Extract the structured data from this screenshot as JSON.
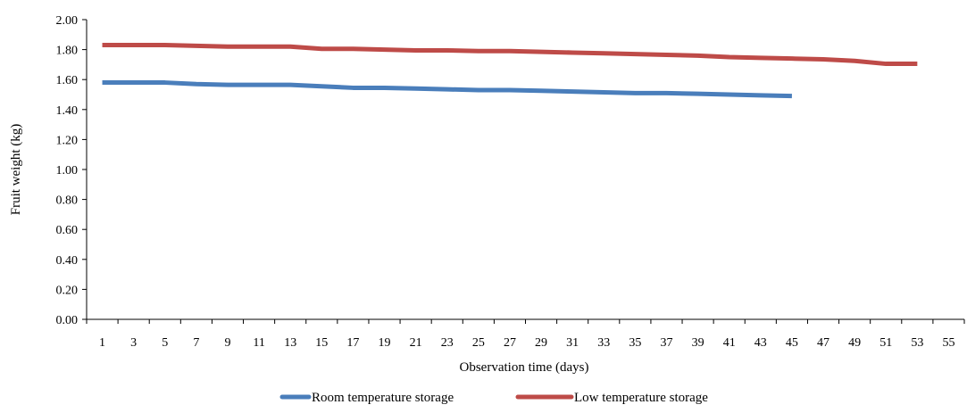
{
  "chart_data": {
    "type": "line",
    "title": "",
    "xlabel": "Observation time (days)",
    "ylabel": "Fruit weight (kg)",
    "xlim": [
      0,
      56
    ],
    "ylim": [
      0,
      2
    ],
    "x_tick_labels": [
      "1",
      "3",
      "5",
      "7",
      "9",
      "11",
      "13",
      "15",
      "17",
      "19",
      "21",
      "23",
      "25",
      "27",
      "29",
      "31",
      "33",
      "35",
      "37",
      "39",
      "41",
      "43",
      "45",
      "47",
      "49",
      "51",
      "53",
      "55"
    ],
    "y_tick_labels": [
      "0.00",
      "0.20",
      "0.40",
      "0.60",
      "0.80",
      "1.00",
      "1.20",
      "1.40",
      "1.60",
      "1.80",
      "2.00"
    ],
    "grid": false,
    "legend_position": "bottom",
    "series": [
      {
        "name": "Room temperature storage",
        "color": "#4a7ebb",
        "x": [
          1,
          3,
          5,
          7,
          9,
          11,
          13,
          15,
          17,
          19,
          21,
          23,
          25,
          27,
          29,
          31,
          33,
          35,
          37,
          39,
          41,
          43,
          45
        ],
        "y": [
          1.58,
          1.58,
          1.58,
          1.57,
          1.565,
          1.565,
          1.565,
          1.555,
          1.545,
          1.545,
          1.54,
          1.535,
          1.53,
          1.53,
          1.525,
          1.52,
          1.515,
          1.51,
          1.51,
          1.505,
          1.5,
          1.495,
          1.49
        ]
      },
      {
        "name": "Low temperature storage",
        "color": "#be4b48",
        "x": [
          1,
          3,
          5,
          7,
          9,
          11,
          13,
          15,
          17,
          19,
          21,
          23,
          25,
          27,
          29,
          31,
          33,
          35,
          37,
          39,
          41,
          43,
          45,
          47,
          49,
          51,
          53
        ],
        "y": [
          1.83,
          1.83,
          1.83,
          1.825,
          1.82,
          1.82,
          1.82,
          1.805,
          1.805,
          1.8,
          1.795,
          1.795,
          1.79,
          1.79,
          1.785,
          1.78,
          1.775,
          1.77,
          1.765,
          1.76,
          1.75,
          1.745,
          1.74,
          1.735,
          1.725,
          1.705,
          1.705
        ]
      }
    ]
  }
}
